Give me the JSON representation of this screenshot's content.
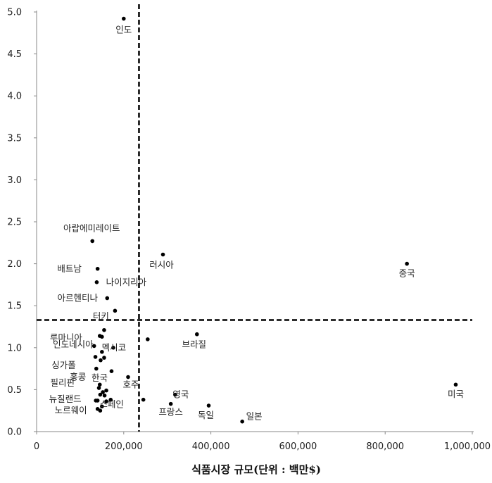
{
  "chart_data": {
    "type": "scatter",
    "xlabel": "식품시장 규모(단위 : 백만$)",
    "ylabel": "",
    "xlim": [
      0,
      1000000
    ],
    "ylim": [
      0,
      5.0
    ],
    "x_ticks": [
      "0",
      "200,000",
      "400,000",
      "600,000",
      "800,000",
      "1,000,000"
    ],
    "y_ticks": [
      "0.0",
      "0.5",
      "1.0",
      "1.5",
      "2.0",
      "2.5",
      "3.0",
      "3.5",
      "4.0",
      "4.5",
      "5.0"
    ],
    "grid": false,
    "reference_lines": {
      "x": 235000,
      "y": 1.33
    },
    "points": [
      {
        "label": "인도",
        "x": 200000,
        "y": 4.92
      },
      {
        "label": "아랍에미레이트",
        "x": 128000,
        "y": 2.27
      },
      {
        "label": "러시아",
        "x": 290000,
        "y": 2.11
      },
      {
        "label": "중국",
        "x": 850000,
        "y": 2.0
      },
      {
        "label": "배트남",
        "x": 140000,
        "y": 1.94
      },
      {
        "label": "나이지리아",
        "x": 138000,
        "y": 1.78
      },
      {
        "label": "아르헨티나",
        "x": 162000,
        "y": 1.59
      },
      {
        "label": "터키",
        "x": 180000,
        "y": 1.44
      },
      {
        "label": "루마니아",
        "x": 155000,
        "y": 1.21
      },
      {
        "label": "브라질",
        "x": 368000,
        "y": 1.16
      },
      {
        "label": "인도네시아",
        "x": 150000,
        "y": 1.13
      },
      {
        "label": "멕시코",
        "x": 255000,
        "y": 1.1
      },
      {
        "label": "싱가폴",
        "x": 135000,
        "y": 0.89
      },
      {
        "label": "홍콩",
        "x": 137000,
        "y": 0.75
      },
      {
        "label": "한국",
        "x": 172000,
        "y": 0.72
      },
      {
        "label": "호주",
        "x": 210000,
        "y": 0.65
      },
      {
        "label": "필리핀",
        "x": 145000,
        "y": 0.56
      },
      {
        "label": "미국",
        "x": 962000,
        "y": 0.56
      },
      {
        "label": "영국",
        "x": 318000,
        "y": 0.44
      },
      {
        "label": "뉴질랜드",
        "x": 140000,
        "y": 0.37
      },
      {
        "label": "스페인",
        "x": 245000,
        "y": 0.38
      },
      {
        "label": "프랑스",
        "x": 308000,
        "y": 0.33
      },
      {
        "label": "독일",
        "x": 395000,
        "y": 0.31
      },
      {
        "label": "노르웨이",
        "x": 140000,
        "y": 0.27
      },
      {
        "label": "일본",
        "x": 472000,
        "y": 0.12
      },
      {
        "label": "",
        "x": 145000,
        "y": 1.14
      },
      {
        "label": "",
        "x": 132000,
        "y": 1.02
      },
      {
        "label": "",
        "x": 176000,
        "y": 1.0
      },
      {
        "label": "",
        "x": 150000,
        "y": 0.95
      },
      {
        "label": "",
        "x": 155000,
        "y": 0.88
      },
      {
        "label": "",
        "x": 147000,
        "y": 0.85
      },
      {
        "label": "",
        "x": 143000,
        "y": 0.52
      },
      {
        "label": "",
        "x": 152000,
        "y": 0.47
      },
      {
        "label": "",
        "x": 160000,
        "y": 0.49
      },
      {
        "label": "",
        "x": 146000,
        "y": 0.44
      },
      {
        "label": "",
        "x": 156000,
        "y": 0.43
      },
      {
        "label": "",
        "x": 136000,
        "y": 0.37
      },
      {
        "label": "",
        "x": 160000,
        "y": 0.36
      },
      {
        "label": "",
        "x": 170000,
        "y": 0.38
      },
      {
        "label": "",
        "x": 150000,
        "y": 0.3
      },
      {
        "label": "",
        "x": 146000,
        "y": 0.25
      }
    ]
  }
}
